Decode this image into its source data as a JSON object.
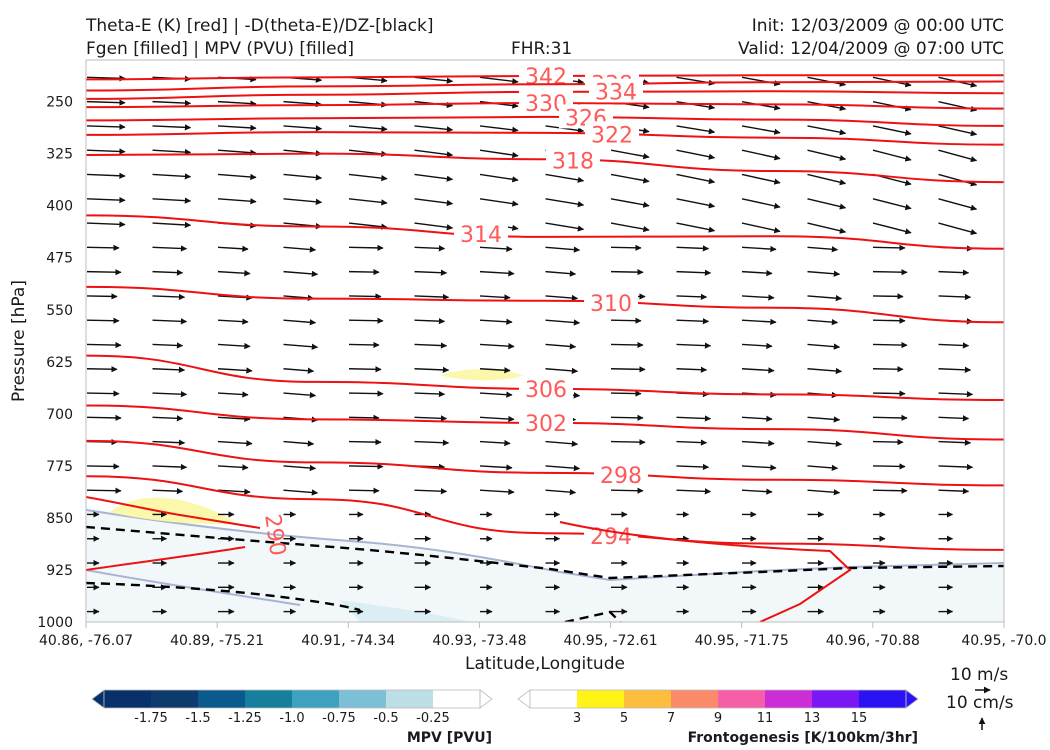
{
  "header": {
    "title_left_1": "Theta-E (K) [red] | -D(theta-E)/DZ-[black]",
    "title_left_2": "Fgen [filled] | MPV (PVU) [filled]",
    "fhr": "FHR:31",
    "init": "Init: 12/03/2009 @ 00:00 UTC",
    "valid": "Valid: 12/04/2009 @ 07:00 UTC"
  },
  "chart_data": {
    "type": "cross-section",
    "xlabel": "Latitude,Longitude",
    "ylabel": "Pressure [hPa]",
    "x_ticks": [
      "40.86, -76.07",
      "40.89, -75.21",
      "40.91, -74.34",
      "40.93, -73.48",
      "40.95, -72.61",
      "40.95, -71.75",
      "40.96, -70.88",
      "40.95, -70.0"
    ],
    "y_ticks": [
      250,
      325,
      400,
      475,
      550,
      625,
      700,
      775,
      850,
      925,
      1000
    ],
    "ylim": [
      190,
      1000
    ],
    "y_inverted": true,
    "theta_e_contours": [
      {
        "label": "342",
        "p": [
          218,
          215,
          213,
          212,
          212
        ]
      },
      {
        "label": "338",
        "p": [
          234,
          228,
          225,
          222,
          221
        ]
      },
      {
        "label": "334",
        "p": [
          246,
          240,
          236,
          235,
          238
        ]
      },
      {
        "label": "330",
        "p": [
          258,
          255,
          252,
          254,
          260
        ]
      },
      {
        "label": "326",
        "p": [
          277,
          274,
          272,
          276,
          285
        ]
      },
      {
        "label": "322",
        "p": [
          298,
          294,
          295,
          302,
          312
        ]
      },
      {
        "label": "318",
        "p": [
          327,
          325,
          333,
          350,
          366
        ]
      },
      {
        "label": "314",
        "p": [
          414,
          430,
          445,
          444,
          462
        ]
      },
      {
        "label": "310",
        "p": [
          517,
          534,
          537,
          547,
          568
        ]
      },
      {
        "label": "306",
        "p": [
          616,
          654,
          664,
          672,
          680
        ]
      },
      {
        "label": "302",
        "p": [
          688,
          708,
          713,
          722,
          737
        ]
      },
      {
        "label": "298",
        "p": [
          739,
          770,
          785,
          795,
          803
        ]
      },
      {
        "label": "294",
        "p": [
          790,
          823,
          872,
          887,
          896
        ]
      }
    ],
    "wind_note": "Arrows indicate circulation in the section plane",
    "reference_vectors": [
      "10 m/s",
      "10 cm/s"
    ],
    "colorbars": [
      {
        "title": "MPV [PVU]",
        "ticks": [
          "-1.75",
          "-1.5",
          "-1.25",
          "-1.0",
          "-0.75",
          "-0.5",
          "-0.25"
        ],
        "colors": [
          "#08306b",
          "#0d3b6e",
          "#0b5a8e",
          "#167f9e",
          "#3ea1c2",
          "#7dbfd6",
          "#bcdfe6",
          "#ffffff"
        ]
      },
      {
        "title": "Frontogenesis [K/100km/3hr]",
        "ticks": [
          "3",
          "5",
          "7",
          "9",
          "11",
          "13",
          "15"
        ],
        "colors": [
          "#ffffff",
          "#fff416",
          "#fdbd3d",
          "#fb8a6a",
          "#f75ea8",
          "#cb2ed6",
          "#7a18f5",
          "#2a12f5"
        ]
      }
    ]
  }
}
